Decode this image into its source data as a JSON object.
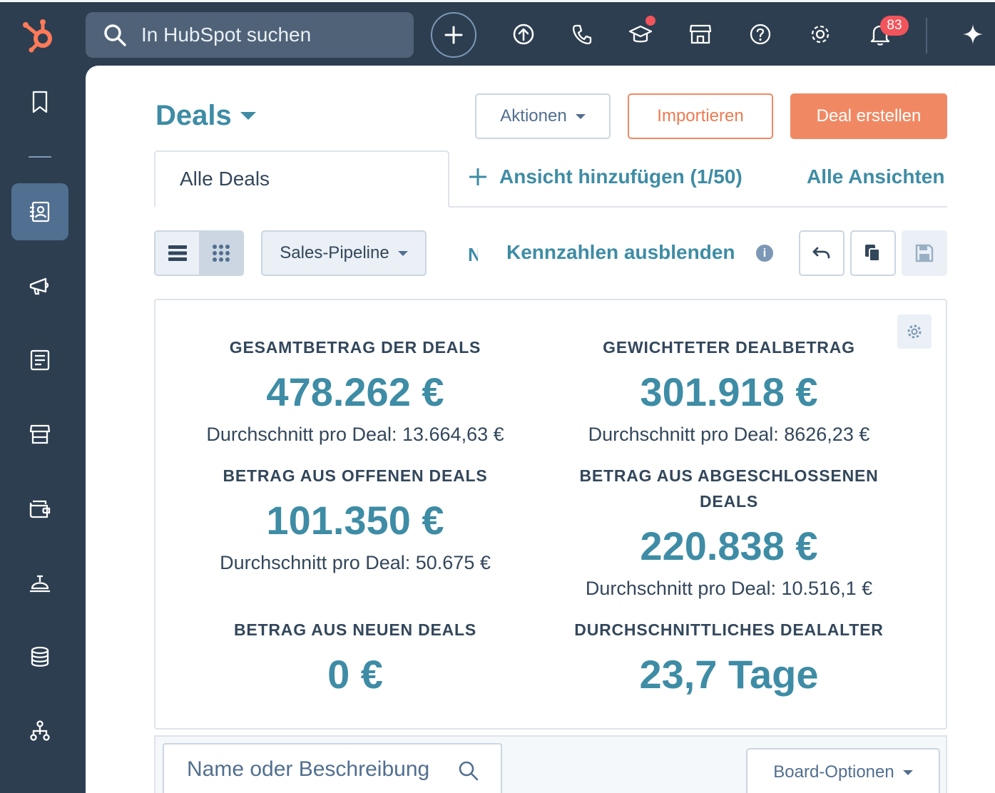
{
  "topbar": {
    "search_placeholder": "In HubSpot suchen",
    "notification_count": "83",
    "icons": [
      "sprocket-logo-icon",
      "search-icon",
      "plus-icon",
      "upgrade-icon",
      "phone-icon",
      "academy-icon",
      "marketplace-icon",
      "help-icon",
      "settings-icon",
      "notifications-icon",
      "ai-sparkle-icon"
    ],
    "colors": {
      "bar": "#2d3e50",
      "logo": "#ff7a59",
      "badge": "#f2545b"
    }
  },
  "sidebar": {
    "icons": [
      "bookmark-icon",
      "contacts-icon",
      "marketing-icon",
      "content-icon",
      "commerce-icon",
      "sales-icon",
      "service-icon",
      "data-icon",
      "automation-icon"
    ],
    "active": "contacts-icon"
  },
  "header": {
    "title": "Deals",
    "actions_label": "Aktionen",
    "import_label": "Importieren",
    "create_label": "Deal erstellen"
  },
  "tabs": {
    "active_tab": "Alle Deals",
    "add_view": "Ansicht hinzufügen (1/50)",
    "all_views": "Alle Ansichten"
  },
  "toolbar": {
    "pipeline": "Sales-Pipeline",
    "truncated_text": "N",
    "hide_kpis": "Kennzahlen ausblenden"
  },
  "stats": {
    "total": {
      "label": "GESAMTBETRAG DER DEALS",
      "value": "478.262 €",
      "sub": "Durchschnitt pro Deal: 13.664,63 €"
    },
    "weighted": {
      "label": "GEWICHTETER DEALBETRAG",
      "value": "301.918 €",
      "sub": "Durchschnitt pro Deal: 8626,23 €"
    },
    "open": {
      "label": "BETRAG AUS OFFENEN DEALS",
      "value": "101.350 €",
      "sub": "Durchschnitt pro Deal: 50.675 €"
    },
    "closed": {
      "label_line1": "BETRAG AUS ABGESCHLOSSENEN",
      "label_line2": "DEALS",
      "value": "220.838 €",
      "sub": "Durchschnitt pro Deal: 10.516,1 €"
    },
    "new": {
      "label": "BETRAG AUS NEUEN DEALS",
      "value": "0 €"
    },
    "age": {
      "label": "DURCHSCHNITTLICHES DEALALTER",
      "value": "23,7 Tage"
    }
  },
  "board": {
    "search_placeholder": "Name oder Beschreibung",
    "options_label": "Board-Optionen"
  }
}
